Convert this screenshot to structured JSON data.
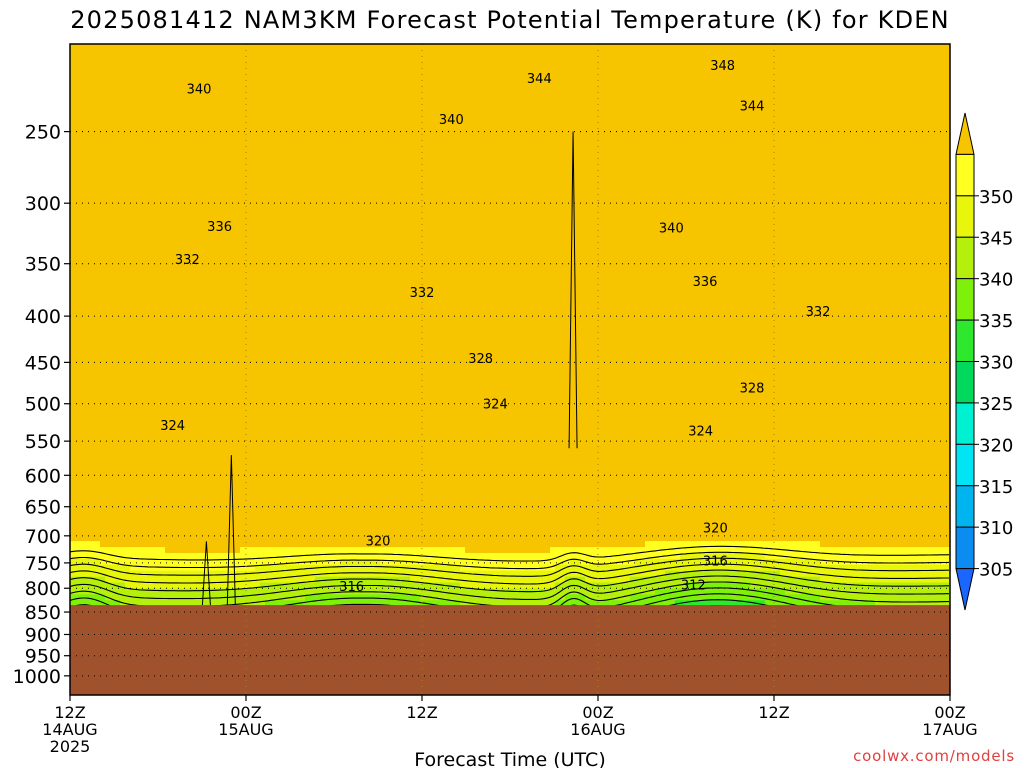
{
  "title": "2025081412 NAM3KM Forecast Potential Temperature (K) for KDEN",
  "credit": "coolwx.com/models",
  "chart_data": {
    "type": "heatmap",
    "title": "2025081412 NAM3KM Forecast Potential Temperature (K) for KDEN",
    "xlabel": "Forecast Time (UTC)",
    "ylabel": "",
    "y_scale": "log",
    "xlim_hours": [
      0,
      60
    ],
    "ylim": [
      1050,
      200
    ],
    "grid": true,
    "x_ticks": [
      {
        "hour": 0,
        "lines": [
          "12Z",
          "14AUG",
          "2025"
        ]
      },
      {
        "hour": 12,
        "lines": [
          "00Z",
          "15AUG"
        ]
      },
      {
        "hour": 24,
        "lines": [
          "12Z"
        ]
      },
      {
        "hour": 36,
        "lines": [
          "00Z",
          "16AUG"
        ]
      },
      {
        "hour": 48,
        "lines": [
          "12Z"
        ]
      },
      {
        "hour": 60,
        "lines": [
          "00Z",
          "17AUG"
        ]
      }
    ],
    "y_ticks": [
      "250",
      "300",
      "350",
      "400",
      "450",
      "500",
      "550",
      "600",
      "650",
      "700",
      "750",
      "800",
      "850",
      "900",
      "950",
      "1000"
    ],
    "colorbar": {
      "levels": [
        "305",
        "310",
        "315",
        "320",
        "325",
        "330",
        "335",
        "340",
        "345",
        "350"
      ],
      "colors": [
        "#1a66ff",
        "#0a8cf0",
        "#00b4f0",
        "#00e4f4",
        "#00f0d2",
        "#00d95c",
        "#2ee82e",
        "#7ef00a",
        "#b4f00c",
        "#e8f60c",
        "#ffff22",
        "#f6c500"
      ]
    },
    "terrain": {
      "top_pressure": 835,
      "color": "#a0522d"
    },
    "contour_labels": [
      {
        "text": "348",
        "hour": 44.5,
        "p": 211
      },
      {
        "text": "344",
        "hour": 32.0,
        "p": 218
      },
      {
        "text": "344",
        "hour": 46.5,
        "p": 234
      },
      {
        "text": "340",
        "hour": 8.8,
        "p": 224
      },
      {
        "text": "340",
        "hour": 26.0,
        "p": 242
      },
      {
        "text": "340",
        "hour": 41.0,
        "p": 319
      },
      {
        "text": "336",
        "hour": 10.2,
        "p": 318
      },
      {
        "text": "336",
        "hour": 43.3,
        "p": 366
      },
      {
        "text": "332",
        "hour": 8.0,
        "p": 346
      },
      {
        "text": "332",
        "hour": 24.0,
        "p": 376
      },
      {
        "text": "332",
        "hour": 51.0,
        "p": 395
      },
      {
        "text": "328",
        "hour": 28.0,
        "p": 445
      },
      {
        "text": "328",
        "hour": 46.5,
        "p": 480
      },
      {
        "text": "324",
        "hour": 7.0,
        "p": 528
      },
      {
        "text": "324",
        "hour": 29.0,
        "p": 500
      },
      {
        "text": "324",
        "hour": 43.0,
        "p": 535
      },
      {
        "text": "320",
        "hour": 21.0,
        "p": 708
      },
      {
        "text": "320",
        "hour": 44.0,
        "p": 685
      },
      {
        "text": "316",
        "hour": 19.2,
        "p": 795
      },
      {
        "text": "316",
        "hour": 44.0,
        "p": 745
      },
      {
        "text": "312",
        "hour": 42.5,
        "p": 792
      }
    ]
  }
}
